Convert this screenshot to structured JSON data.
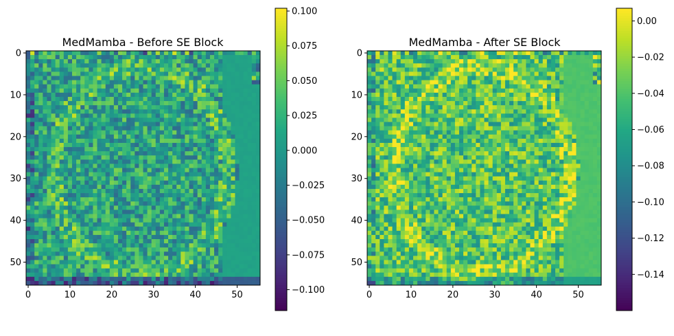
{
  "chart_data": [
    {
      "type": "heatmap",
      "title": "MedMamba - Before SE Block",
      "colormap": "viridis",
      "grid_size": [
        56,
        56
      ],
      "xlim": [
        -0.5,
        55.5
      ],
      "ylim": [
        55.5,
        -0.5
      ],
      "xticks": [
        0,
        10,
        20,
        30,
        40,
        50
      ],
      "yticks": [
        0,
        10,
        20,
        30,
        40,
        50
      ],
      "xtick_labels": [
        "0",
        "10",
        "20",
        "30",
        "40",
        "50"
      ],
      "ytick_labels": [
        "0",
        "10",
        "20",
        "30",
        "40",
        "50"
      ],
      "colorbar": {
        "vmin": -0.115,
        "vmax": 0.102,
        "ticks": [
          0.1,
          0.075,
          0.05,
          0.025,
          0.0,
          -0.025,
          -0.05,
          -0.075,
          -0.1
        ],
        "tick_labels": [
          "0.100",
          "0.075",
          "0.050",
          "0.025",
          "0.000",
          "−0.025",
          "−0.050",
          "−0.075",
          "−0.100"
        ]
      },
      "background_value": 0.01,
      "pattern_seed": 7
    },
    {
      "type": "heatmap",
      "title": "MedMamba - After SE Block",
      "colormap": "viridis",
      "grid_size": [
        56,
        56
      ],
      "xlim": [
        -0.5,
        55.5
      ],
      "ylim": [
        55.5,
        -0.5
      ],
      "xticks": [
        0,
        10,
        20,
        30,
        40,
        50
      ],
      "yticks": [
        0,
        10,
        20,
        30,
        40,
        50
      ],
      "xtick_labels": [
        "0",
        "10",
        "20",
        "30",
        "40",
        "50"
      ],
      "ytick_labels": [
        "0",
        "10",
        "20",
        "30",
        "40",
        "50"
      ],
      "colorbar": {
        "vmin": -0.16,
        "vmax": 0.007,
        "ticks": [
          0.0,
          -0.02,
          -0.04,
          -0.06,
          -0.08,
          -0.1,
          -0.12,
          -0.14
        ],
        "tick_labels": [
          "0.00",
          "−0.02",
          "−0.04",
          "−0.06",
          "−0.08",
          "−0.10",
          "−0.12",
          "−0.14"
        ]
      },
      "background_value": -0.04,
      "pattern_seed": 13
    }
  ]
}
